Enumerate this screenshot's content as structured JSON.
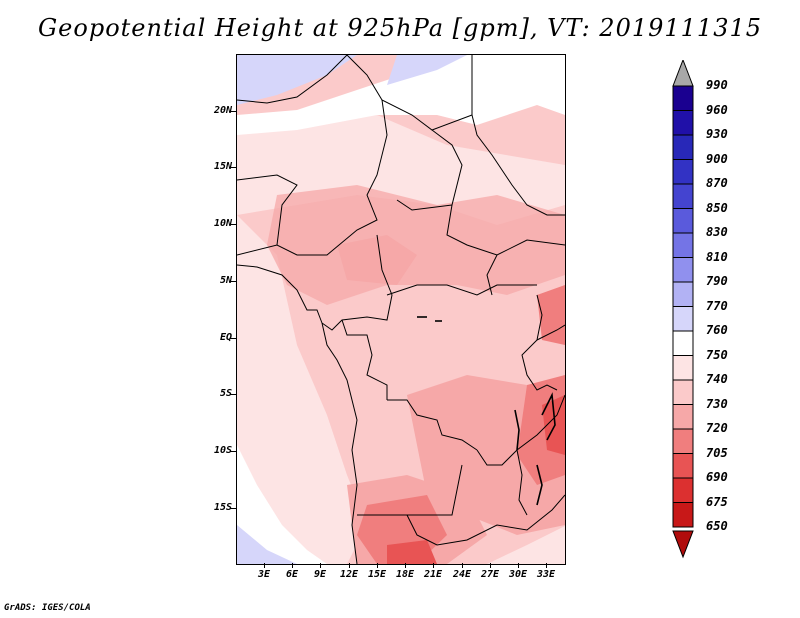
{
  "title": "Geopotential Height at 925hPa [gpm], VT: 2019111315",
  "footer": "GrADS: IGES/COLA",
  "latitude_labels": [
    "20N",
    "15N",
    "10N",
    "5N",
    "EQ",
    "5S",
    "10S",
    "15S"
  ],
  "longitude_labels": [
    "3E",
    "6E",
    "9E",
    "12E",
    "15E",
    "18E",
    "21E",
    "24E",
    "27E",
    "30E",
    "33E"
  ],
  "colorbar": {
    "levels": [
      "990",
      "960",
      "930",
      "900",
      "870",
      "850",
      "830",
      "810",
      "790",
      "770",
      "760",
      "750",
      "740",
      "730",
      "720",
      "705",
      "690",
      "675",
      "650"
    ],
    "colors": [
      "#1a0090",
      "#2010a8",
      "#2828b8",
      "#3232c4",
      "#4444d0",
      "#5a5adc",
      "#7474e6",
      "#9090ee",
      "#b2b2f4",
      "#d6d6fa",
      "#ffffff",
      "#fde4e4",
      "#fbcaca",
      "#f6a8a8",
      "#f07e7e",
      "#e85454",
      "#dc3030",
      "#c81818",
      "#b00c0c"
    ],
    "upper_arrow_color": "#a8a8a8",
    "lower_arrow_color": "#b00c0c"
  },
  "palette": {
    "low_blue": "#d6d6fa",
    "white": "#ffffff",
    "pink_750": "#fde4e4",
    "pink_740": "#fbcaca",
    "pink_730": "#f6a8a8",
    "red_720": "#f07e7e",
    "red_705": "#e85454"
  }
}
